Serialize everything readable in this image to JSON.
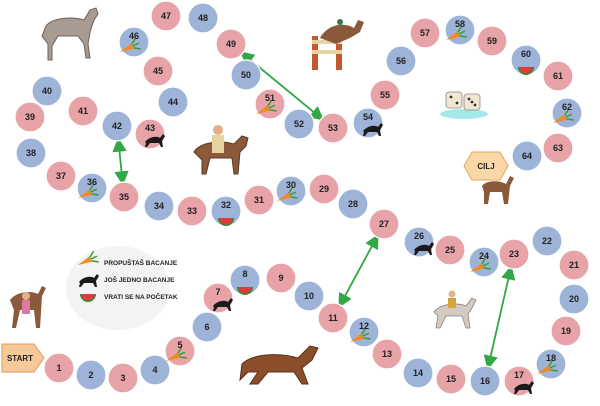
{
  "board": {
    "start_label": "START",
    "goal_label": "CILJ",
    "colors": {
      "pink": "#e8a3a8",
      "blue": "#9eb3d8",
      "ladder": "#2fa845",
      "start_box": "#f6c99a",
      "goal_box": "#f9d7a6"
    },
    "cells": [
      {
        "n": "1",
        "c": "pink"
      },
      {
        "n": "2",
        "c": "blue"
      },
      {
        "n": "3",
        "c": "pink"
      },
      {
        "n": "4",
        "c": "blue"
      },
      {
        "n": "5",
        "c": "pink",
        "mark": "carrot"
      },
      {
        "n": "6",
        "c": "blue"
      },
      {
        "n": "7",
        "c": "pink",
        "mark": "horse"
      },
      {
        "n": "8",
        "c": "blue",
        "mark": "melon"
      },
      {
        "n": "9",
        "c": "pink"
      },
      {
        "n": "10",
        "c": "blue"
      },
      {
        "n": "11",
        "c": "pink"
      },
      {
        "n": "12",
        "c": "blue",
        "mark": "carrot"
      },
      {
        "n": "13",
        "c": "pink"
      },
      {
        "n": "14",
        "c": "blue"
      },
      {
        "n": "15",
        "c": "pink"
      },
      {
        "n": "16",
        "c": "blue"
      },
      {
        "n": "17",
        "c": "pink",
        "mark": "horse"
      },
      {
        "n": "18",
        "c": "blue",
        "mark": "carrot"
      },
      {
        "n": "19",
        "c": "pink"
      },
      {
        "n": "20",
        "c": "blue"
      },
      {
        "n": "21",
        "c": "pink"
      },
      {
        "n": "22",
        "c": "blue"
      },
      {
        "n": "23",
        "c": "pink"
      },
      {
        "n": "24",
        "c": "blue",
        "mark": "carrot"
      },
      {
        "n": "25",
        "c": "pink"
      },
      {
        "n": "26",
        "c": "blue",
        "mark": "horse"
      },
      {
        "n": "27",
        "c": "pink"
      },
      {
        "n": "28",
        "c": "blue"
      },
      {
        "n": "29",
        "c": "pink"
      },
      {
        "n": "30",
        "c": "blue",
        "mark": "carrot"
      },
      {
        "n": "31",
        "c": "pink"
      },
      {
        "n": "32",
        "c": "blue",
        "mark": "melon"
      },
      {
        "n": "33",
        "c": "pink"
      },
      {
        "n": "34",
        "c": "blue"
      },
      {
        "n": "35",
        "c": "pink"
      },
      {
        "n": "36",
        "c": "blue",
        "mark": "carrot"
      },
      {
        "n": "37",
        "c": "pink"
      },
      {
        "n": "38",
        "c": "blue"
      },
      {
        "n": "39",
        "c": "pink"
      },
      {
        "n": "40",
        "c": "blue"
      },
      {
        "n": "41",
        "c": "pink"
      },
      {
        "n": "42",
        "c": "blue"
      },
      {
        "n": "43",
        "c": "pink",
        "mark": "horse"
      },
      {
        "n": "44",
        "c": "blue"
      },
      {
        "n": "45",
        "c": "pink"
      },
      {
        "n": "46",
        "c": "blue",
        "mark": "carrot"
      },
      {
        "n": "47",
        "c": "pink"
      },
      {
        "n": "48",
        "c": "blue"
      },
      {
        "n": "49",
        "c": "pink"
      },
      {
        "n": "50",
        "c": "blue"
      },
      {
        "n": "51",
        "c": "pink",
        "mark": "carrot"
      },
      {
        "n": "52",
        "c": "blue"
      },
      {
        "n": "53",
        "c": "pink"
      },
      {
        "n": "54",
        "c": "blue",
        "mark": "horse"
      },
      {
        "n": "55",
        "c": "pink"
      },
      {
        "n": "56",
        "c": "blue"
      },
      {
        "n": "57",
        "c": "pink"
      },
      {
        "n": "58",
        "c": "blue",
        "mark": "carrot"
      },
      {
        "n": "59",
        "c": "pink"
      },
      {
        "n": "60",
        "c": "blue",
        "mark": "melon"
      },
      {
        "n": "61",
        "c": "pink"
      },
      {
        "n": "62",
        "c": "blue",
        "mark": "carrot"
      },
      {
        "n": "63",
        "c": "pink"
      },
      {
        "n": "64",
        "c": "blue"
      }
    ],
    "ladders": [
      {
        "from": "35",
        "to": "42"
      },
      {
        "from": "49",
        "to": "53"
      },
      {
        "from": "11",
        "to": "27"
      },
      {
        "from": "16",
        "to": "23"
      }
    ]
  },
  "legend": {
    "items": [
      {
        "icon": "carrot-icon",
        "text": "PROPUŠTAŠ BACANJE"
      },
      {
        "icon": "horse-icon",
        "text": "JOŠ JEDNO BACANJE"
      },
      {
        "icon": "watermelon-icon",
        "text": "VRATI SE NA POČETAK"
      }
    ]
  }
}
